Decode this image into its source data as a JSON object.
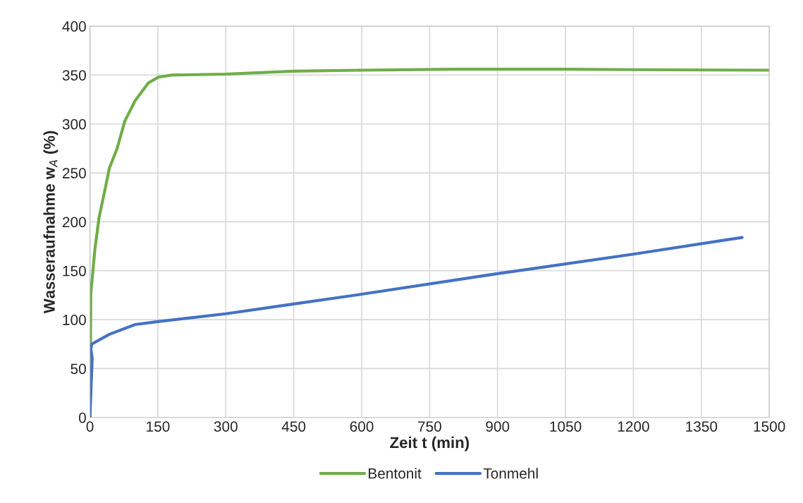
{
  "chart_data": {
    "type": "line",
    "xlabel": "Zeit t (min)",
    "ylabel": "Wasseraufnahme w$_{A}$ (%)",
    "xlim": [
      0,
      1500
    ],
    "ylim": [
      0,
      400
    ],
    "xticks": [
      0,
      150,
      300,
      450,
      600,
      750,
      900,
      1050,
      1200,
      1350,
      1500
    ],
    "yticks": [
      0,
      50,
      100,
      150,
      200,
      250,
      300,
      350,
      400
    ],
    "grid": true,
    "legend": "bottom",
    "marker": "none",
    "line_style": "solid",
    "series": [
      {
        "name": "Bentonit",
        "color": "#70ad47",
        "x": [
          0,
          2,
          11,
          20,
          31,
          43,
          60,
          77,
          100,
          129,
          152,
          181,
          300,
          450,
          600,
          800,
          1050,
          1200,
          1500
        ],
        "values": [
          0,
          127,
          172,
          204,
          228,
          255,
          275,
          303,
          324,
          342,
          348,
          350,
          351,
          354,
          355,
          356,
          356,
          355.5,
          355
        ]
      },
      {
        "name": "Tonmehl",
        "color": "#4472c4",
        "x": [
          0,
          5,
          2,
          4,
          43,
          100,
          150,
          300,
          450,
          600,
          900,
          1200,
          1440
        ],
        "values": [
          0,
          61,
          70,
          75,
          85,
          95,
          98,
          106,
          116,
          126,
          147,
          167,
          184
        ]
      }
    ]
  }
}
